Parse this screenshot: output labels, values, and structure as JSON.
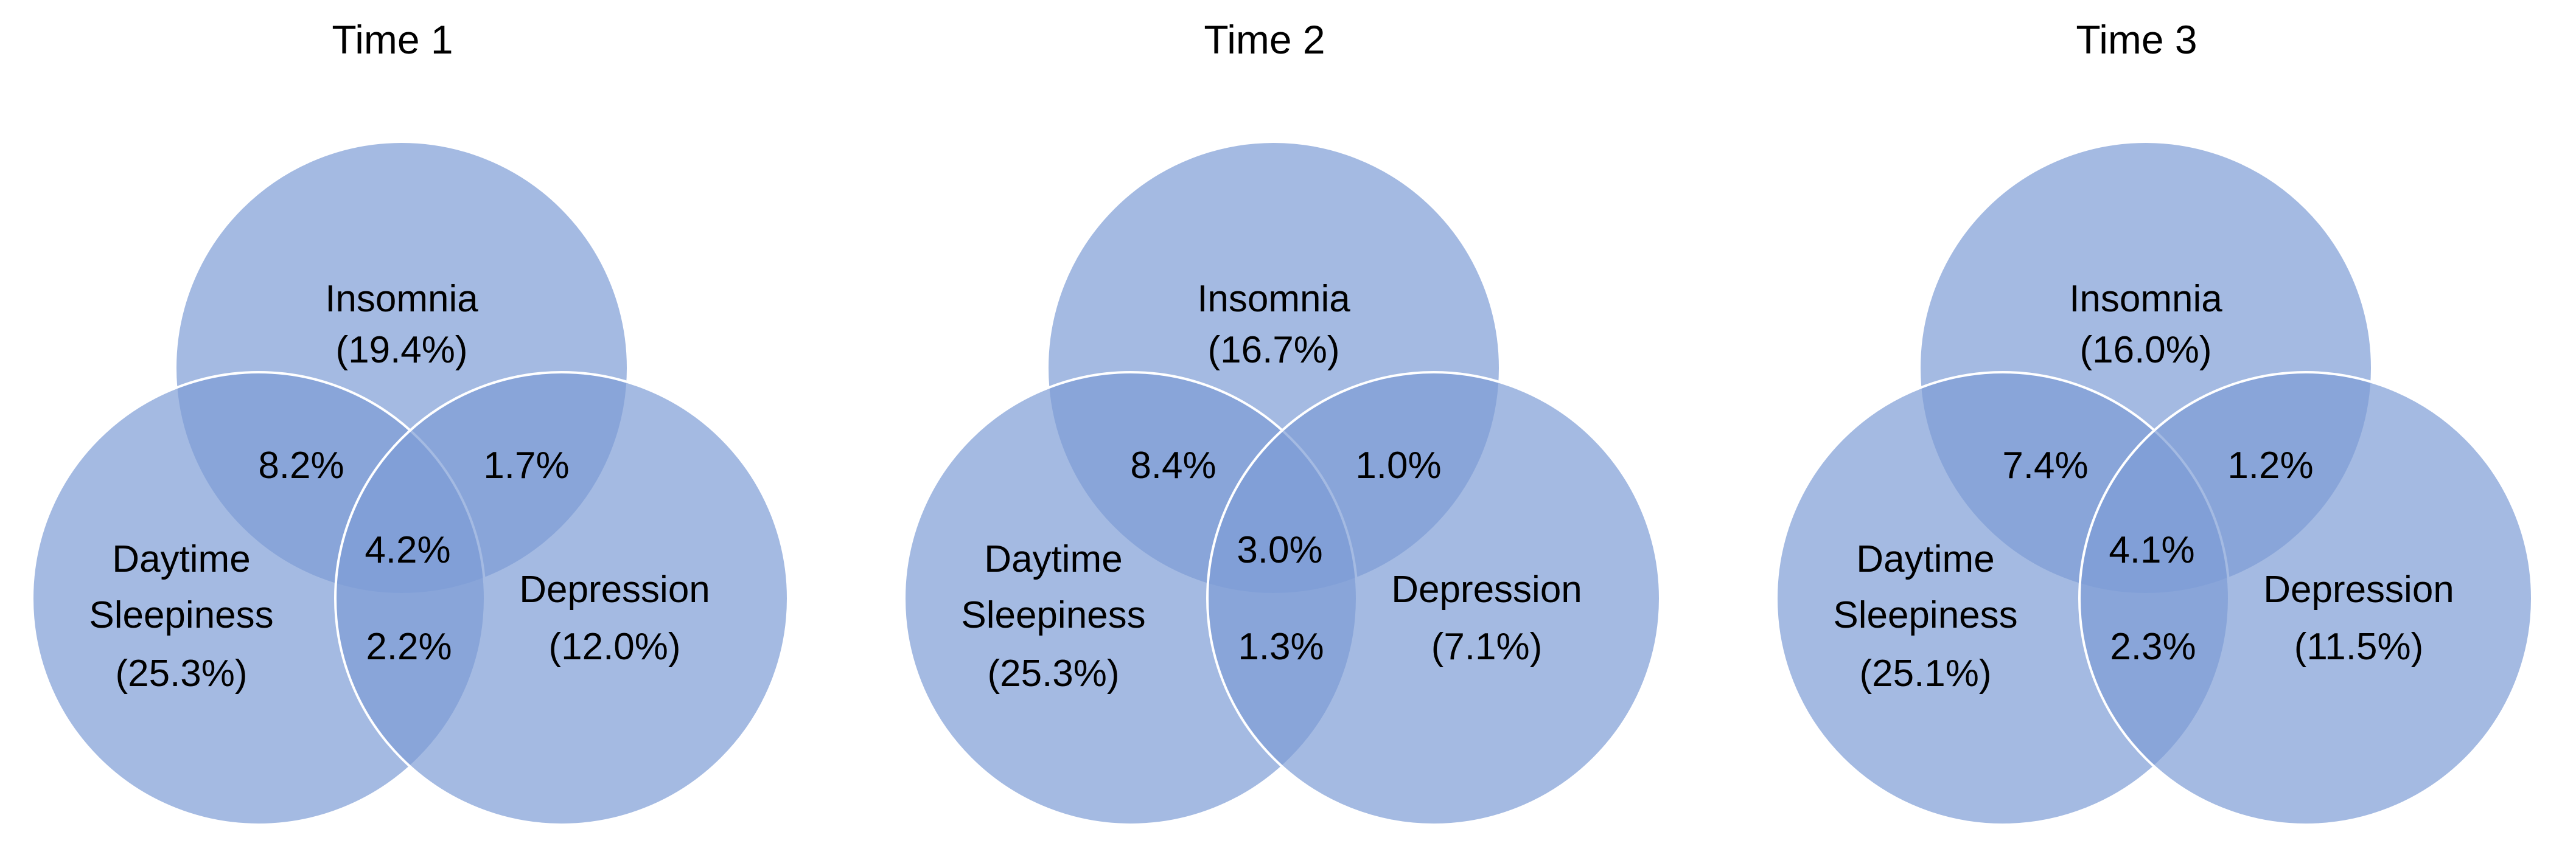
{
  "colors": {
    "circle_fill": "#7e9dd5",
    "circle_opacity": 0.7,
    "outline": "#ffffff",
    "text": "#000000"
  },
  "panels": [
    {
      "title": "Time 1",
      "insomnia": {
        "label": "Insomnia",
        "pct": "(19.4%)"
      },
      "sleepiness": {
        "label_line1": "Daytime",
        "label_line2": "Sleepiness",
        "pct": "(25.3%)"
      },
      "depression": {
        "label": "Depression",
        "pct": "(12.0%)"
      },
      "overlaps": {
        "insomnia_sleepiness": "8.2%",
        "insomnia_depression": "1.7%",
        "all_three": "4.2%",
        "sleepiness_depression": "2.2%"
      }
    },
    {
      "title": "Time 2",
      "insomnia": {
        "label": "Insomnia",
        "pct": "(16.7%)"
      },
      "sleepiness": {
        "label_line1": "Daytime",
        "label_line2": "Sleepiness",
        "pct": "(25.3%)"
      },
      "depression": {
        "label": "Depression",
        "pct": "(7.1%)"
      },
      "overlaps": {
        "insomnia_sleepiness": "8.4%",
        "insomnia_depression": "1.0%",
        "all_three": "3.0%",
        "sleepiness_depression": "1.3%"
      }
    },
    {
      "title": "Time 3",
      "insomnia": {
        "label": "Insomnia",
        "pct": "(16.0%)"
      },
      "sleepiness": {
        "label_line1": "Daytime",
        "label_line2": "Sleepiness",
        "pct": "(25.1%)"
      },
      "depression": {
        "label": "Depression",
        "pct": "(11.5%)"
      },
      "overlaps": {
        "insomnia_sleepiness": "7.4%",
        "insomnia_depression": "1.2%",
        "all_three": "4.1%",
        "sleepiness_depression": "2.3%"
      }
    }
  ]
}
